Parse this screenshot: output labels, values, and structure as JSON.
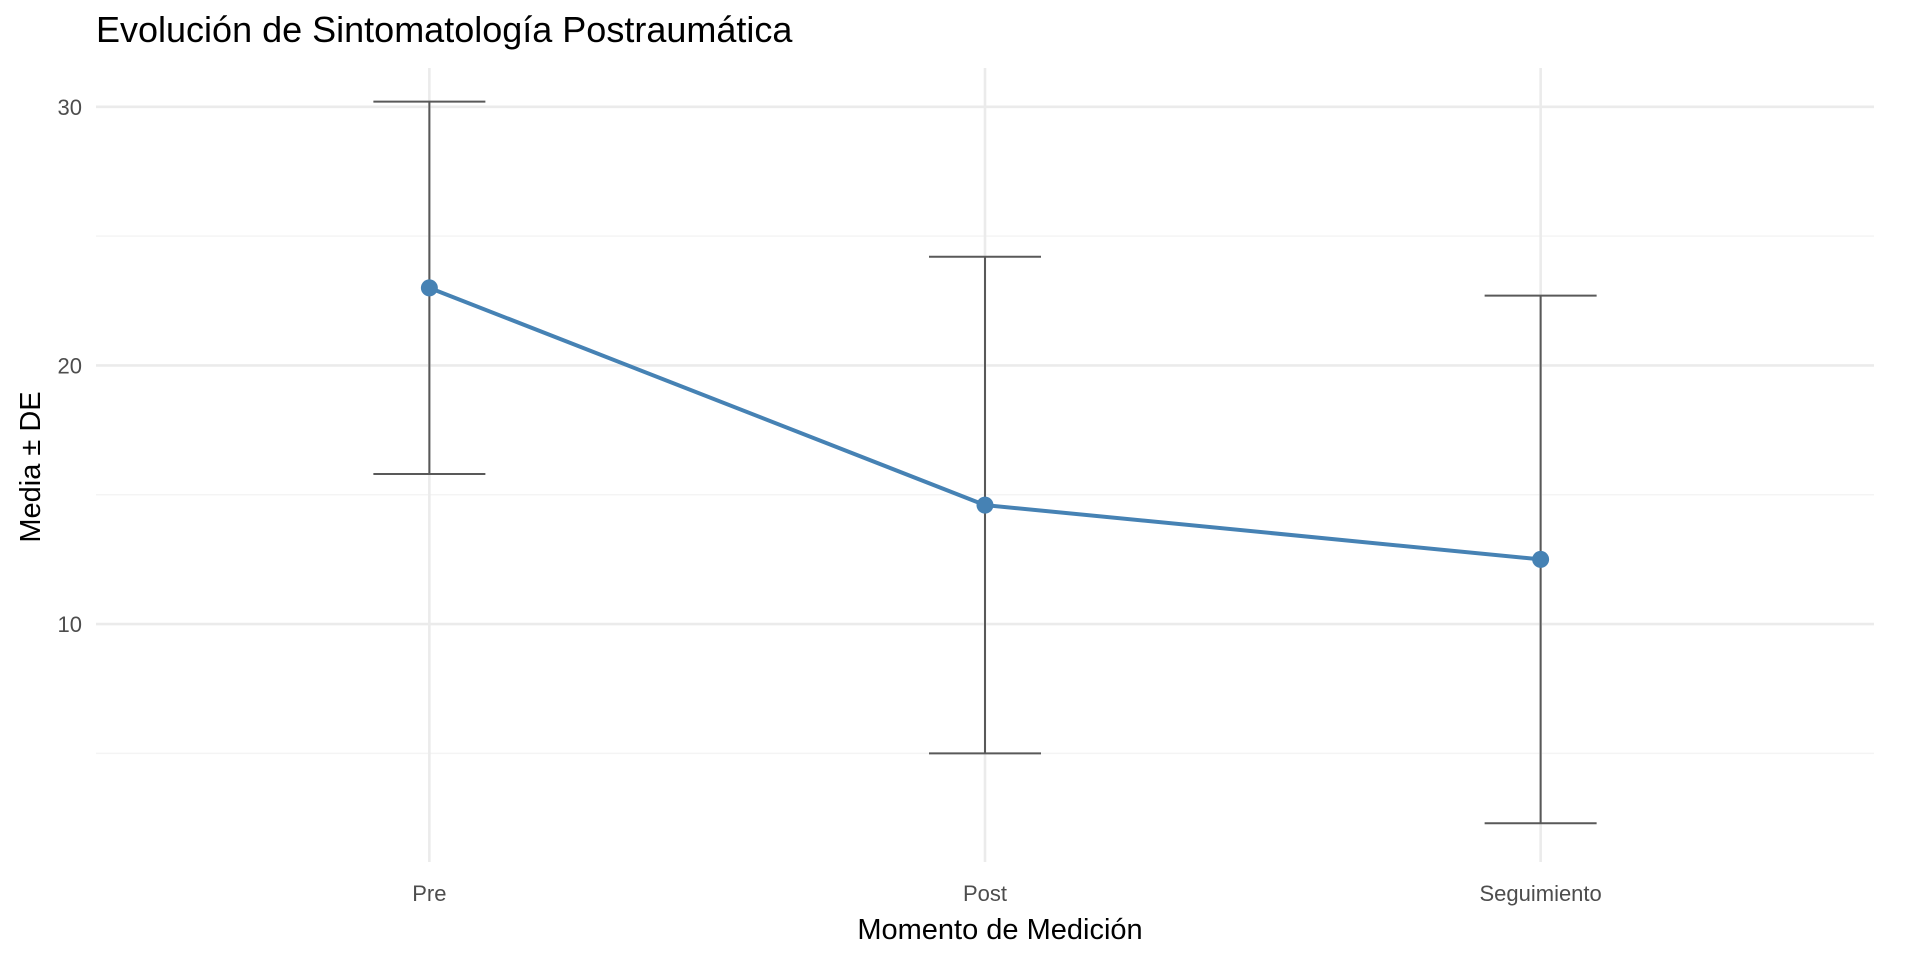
{
  "chart_data": {
    "type": "line",
    "title": "Evolución de Sintomatología Postraumática",
    "xlabel": "Momento de Medición",
    "ylabel": "Media ± DE",
    "categories": [
      "Pre",
      "Post",
      "Seguimiento"
    ],
    "series": [
      {
        "values": [
          23.0,
          14.6,
          12.5
        ],
        "sd": [
          7.2,
          9.6,
          10.2
        ]
      }
    ],
    "ylim": [
      0.8,
      31.5
    ],
    "yticks": [
      10,
      20,
      30
    ],
    "ytick_labels": [
      "10",
      "20",
      "30"
    ],
    "grid": true,
    "legend": "none",
    "colors": {
      "line": "#4682b4",
      "errorbar": "#595959",
      "grid_major": "#ebebeb",
      "grid_minor": "#f4f4f4"
    }
  }
}
